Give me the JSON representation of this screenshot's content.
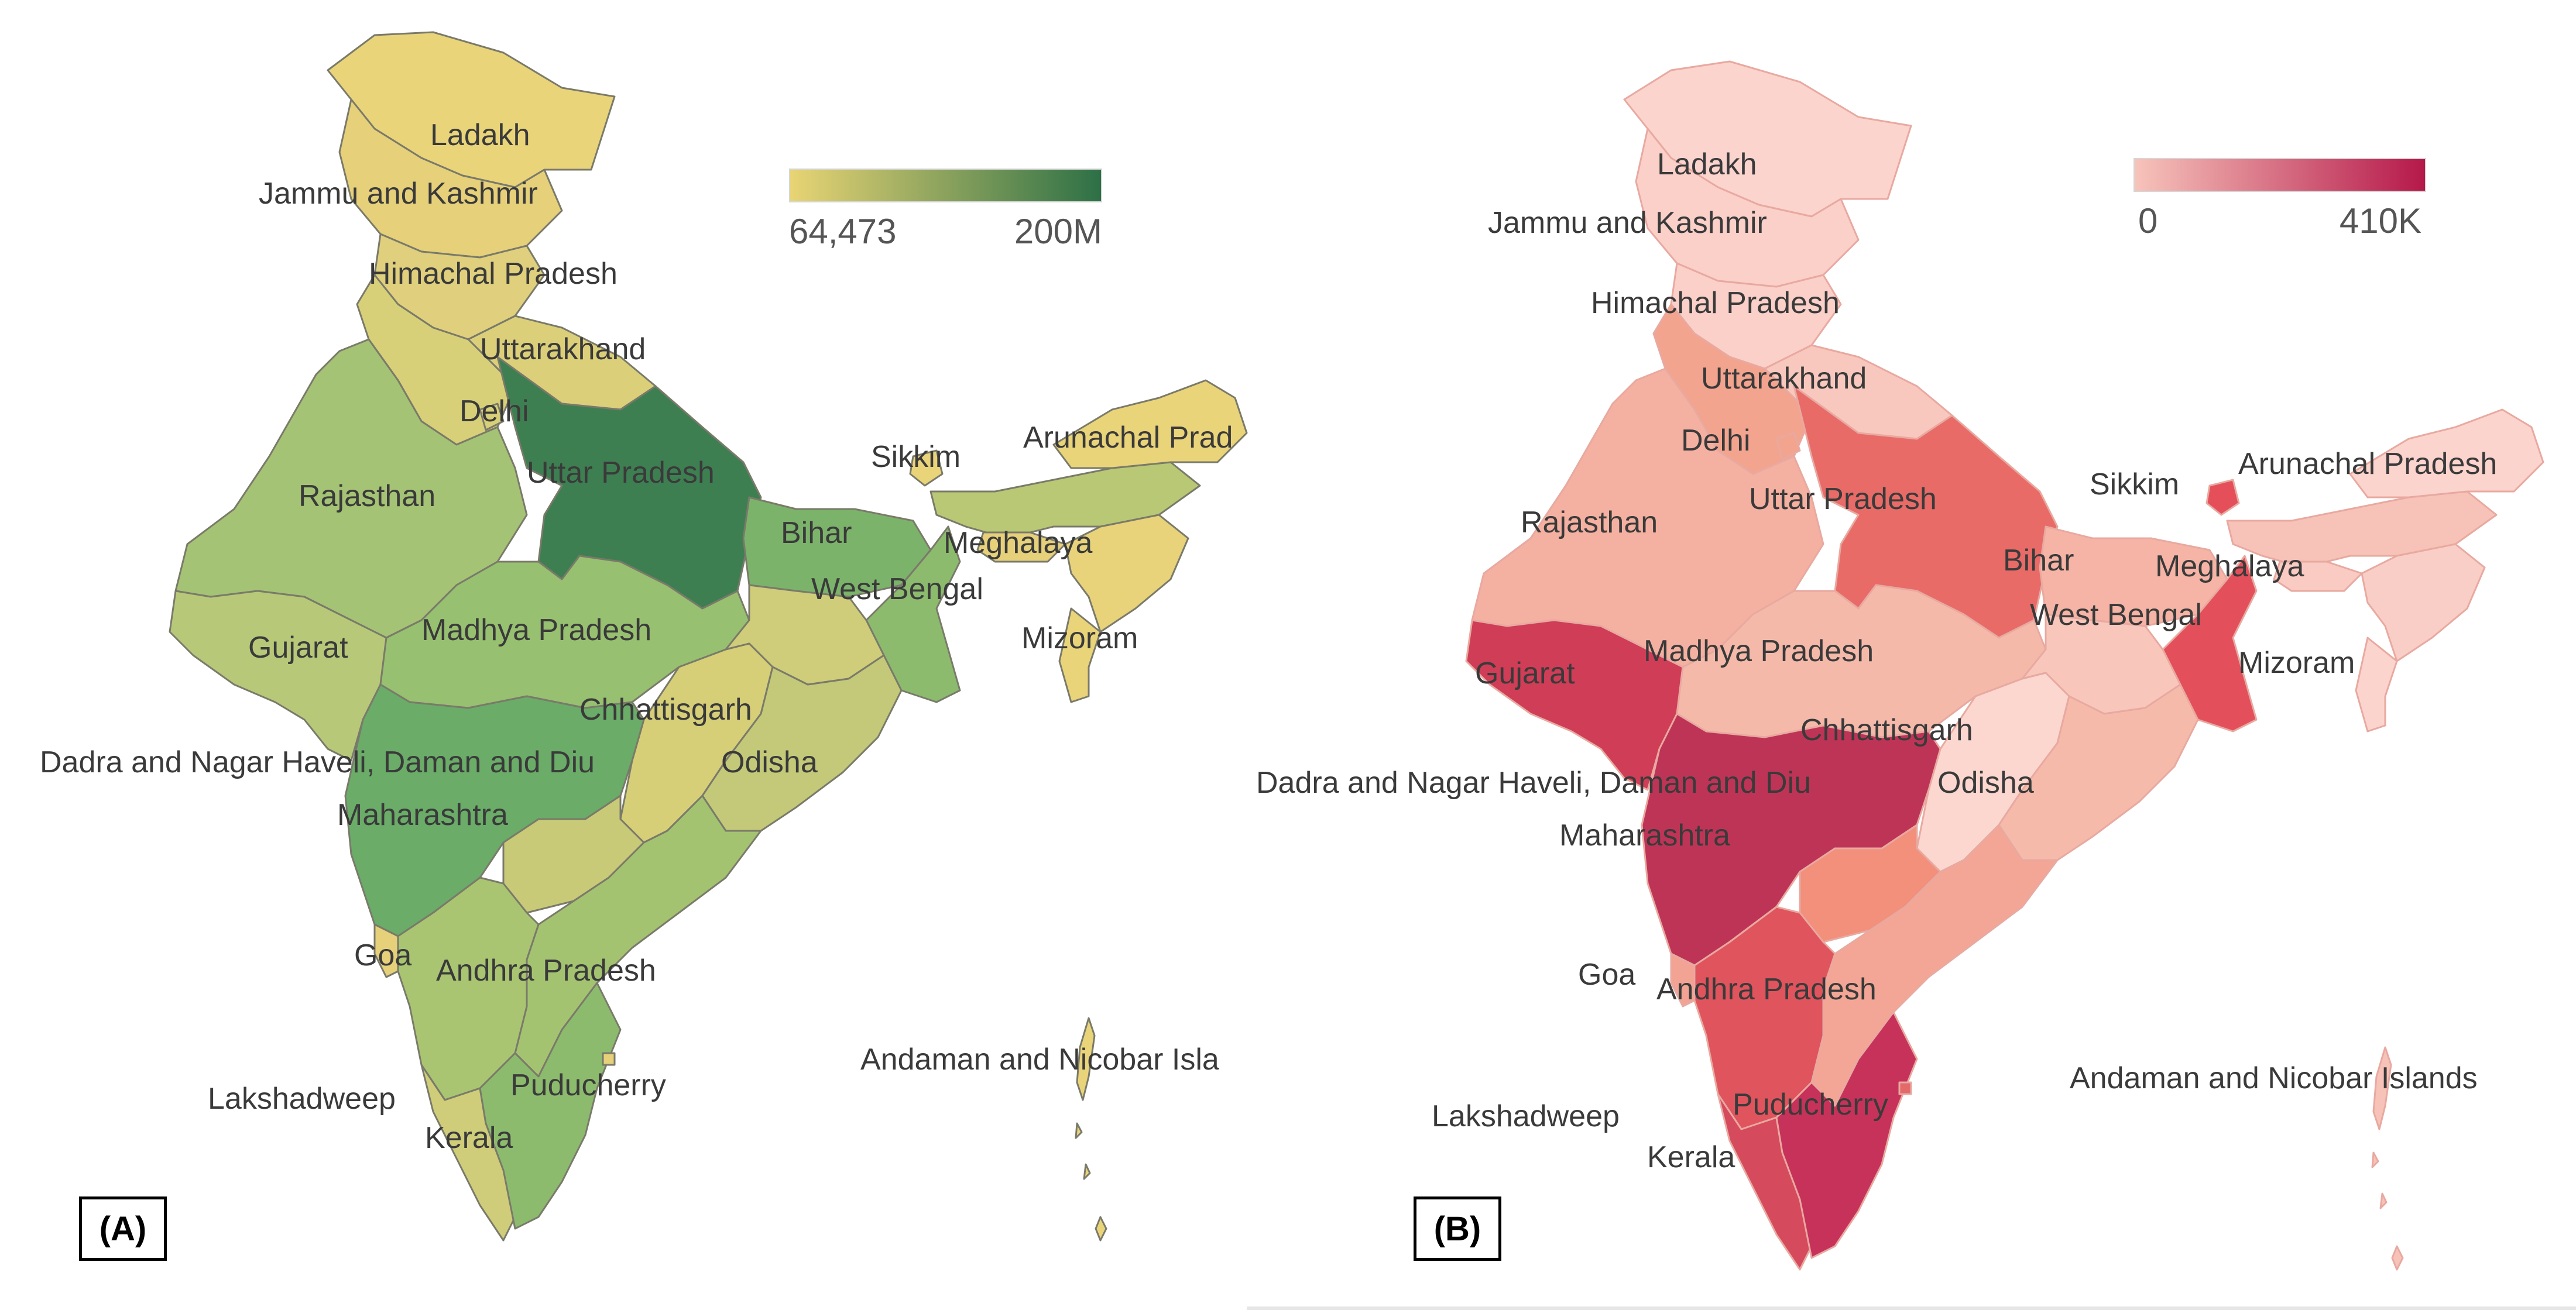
{
  "panels": [
    {
      "id": "A",
      "tag": "(A)",
      "legend": {
        "min_label": "64,473",
        "max_label": "200M",
        "color_low": "#e8d474",
        "color_high": "#2d7046"
      },
      "colors": {
        "ladakh": "#ead47a",
        "jk": "#e6d07a",
        "hp": "#e0cf7c",
        "uttarakhand": "#dccf7a",
        "delhi": "#d8d078",
        "rajasthan": "#a5c374",
        "up": "#3e7f52",
        "bihar": "#7cb36b",
        "wb": "#8cbb6e",
        "sikkim": "#ead47a",
        "arunachal": "#ead47a",
        "assam": "#b9c874",
        "meghalaya": "#e6d07a",
        "ne_states": "#e8d27a",
        "mizoram": "#ead47a",
        "gujarat": "#b7c979",
        "mp": "#97c070",
        "chhattisgarh": "#d6cf78",
        "odisha": "#c3c978",
        "jharkhand": "#cfcd79",
        "maharashtra": "#6aac68",
        "telangana": "#c9ca78",
        "andhra": "#a4c371",
        "karnataka": "#a9c572",
        "goa": "#e6d07a",
        "kerala": "#cfcd79",
        "tamilnadu": "#8cbb6e",
        "puducherry": "#e6d07a",
        "andaman": "#ead47a"
      },
      "labels": {
        "ladakh": "Ladakh",
        "jk": "Jammu and Kashmir",
        "hp": "Himachal Pradesh",
        "uttarakhand": "Uttarakhand",
        "delhi": "Delhi",
        "up": "Uttar Pradesh",
        "rajasthan": "Rajasthan",
        "bihar": "Bihar",
        "sikkim": "Sikkim",
        "arunachal": "Arunachal Prad",
        "meghalaya": "Meghalaya",
        "wb": "West Bengal",
        "mizoram": "Mizoram",
        "gujarat": "Gujarat",
        "mp": "Madhya Pradesh",
        "chhattisgarh": "Chhattisgarh",
        "dnh": "Dadra and Nagar Haveli, Daman and Diu",
        "odisha": "Odisha",
        "maharashtra": "Maharashtra",
        "goa": "Goa",
        "andhra": "Andhra Pradesh",
        "andaman": "Andaman and Nicobar Isla",
        "lakshadweep": "Lakshadweep",
        "puducherry": "Puducherry",
        "kerala": "Kerala"
      }
    },
    {
      "id": "B",
      "tag": "(B)",
      "legend": {
        "min_label": "0",
        "max_label": "410K",
        "color_low": "#f7c4bb",
        "color_high": "#b5184a"
      },
      "colors": {
        "ladakh": "#fbd4cd",
        "jk": "#fad0c9",
        "hp": "#fad0c9",
        "uttarakhand": "#f8c7bd",
        "delhi": "#f3a48f",
        "rajasthan": "#f4b0a0",
        "up": "#e86b67",
        "bihar": "#f5b4a5",
        "wb": "#e3505b",
        "sikkim": "#e44f5a",
        "arunachal": "#fbd4cd",
        "assam": "#f7c2b7",
        "meghalaya": "#f9cbc2",
        "ne_states": "#f9cec6",
        "mizoram": "#fbd4cd",
        "gujarat": "#cf3d57",
        "mp": "#f5b9aa",
        "chhattisgarh": "#fbd7cf",
        "odisha": "#f6baab",
        "jharkhand": "#f8c6bb",
        "maharashtra": "#be3457",
        "telangana": "#f2907c",
        "andhra": "#f3a695",
        "karnataka": "#e0545d",
        "goa": "#f2a394",
        "kerala": "#d64a5e",
        "tamilnadu": "#c7325a",
        "puducherry": "#e36a6b",
        "andaman": "#f7c2b7"
      },
      "labels": {
        "ladakh": "Ladakh",
        "jk": "Jammu and Kashmir",
        "hp": "Himachal Pradesh",
        "uttarakhand": "Uttarakhand",
        "delhi": "Delhi",
        "up": "Uttar Pradesh",
        "rajasthan": "Rajasthan",
        "bihar": "Bihar",
        "sikkim": "Sikkim",
        "arunachal": "Arunachal Pradesh",
        "meghalaya": "Meghalaya",
        "wb": "West Bengal",
        "mizoram": "Mizoram",
        "gujarat": "Gujarat",
        "mp": "Madhya Pradesh",
        "chhattisgarh": "Chhattisgarh",
        "dnh": "Dadra and Nagar Haveli, Daman and Diu",
        "odisha": "Odisha",
        "maharashtra": "Maharashtra",
        "goa": "Goa",
        "andhra": "Andhra Pradesh",
        "andaman": "Andaman and Nicobar Islands",
        "lakshadweep": "Lakshadweep",
        "puducherry": "Puducherry",
        "kerala": "Kerala"
      }
    }
  ]
}
